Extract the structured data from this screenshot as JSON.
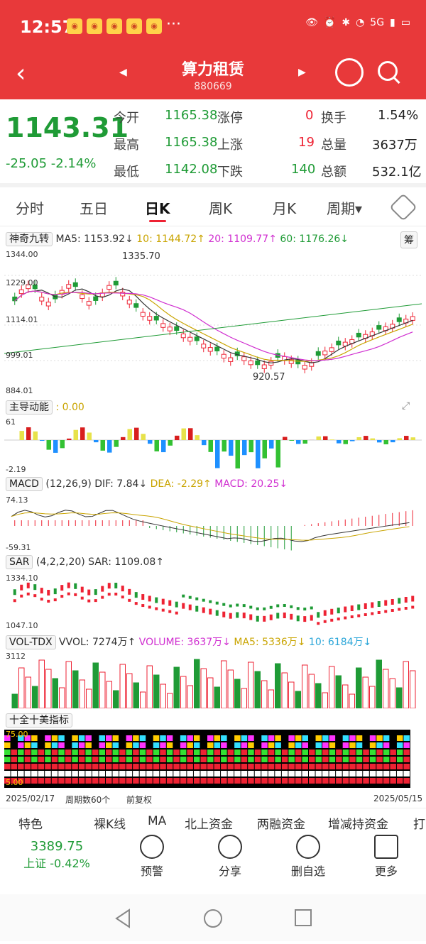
{
  "status": {
    "time": "12:57",
    "dots": "···",
    "network": "5G"
  },
  "header": {
    "title": "算力租赁",
    "code": "880669"
  },
  "quote": {
    "price": "1143.31",
    "change": "-25.05",
    "change_pct": "-2.14%",
    "open_label": "今开",
    "open": "1165.38",
    "high_label": "最高",
    "high": "1165.38",
    "low_label": "最低",
    "low": "1142.08",
    "limitup_label": "涨停",
    "limitup": "0",
    "up_label": "上涨",
    "up": "19",
    "down_label": "下跌",
    "down": "140",
    "turnover_label": "换手",
    "turnover": "1.54%",
    "volume_label": "总量",
    "volume": "3637万",
    "amount_label": "总额",
    "amount": "532.1亿"
  },
  "tabs": [
    "分时",
    "五日",
    "日K",
    "周K",
    "月K",
    "周期"
  ],
  "main_ind": {
    "name": "神奇九转",
    "ma5": "MA5: 1153.92↓",
    "ma10": "10: 1144.72↑",
    "ma20": "20: 1109.77↑",
    "ma60": "60: 1176.26↓",
    "badge": "筹",
    "y_labels": [
      "1344.00",
      "1229.00",
      "1114.01",
      "999.01",
      "884.01"
    ],
    "hi_label": "1335.70",
    "lo_label": "920.57"
  },
  "zd": {
    "name": "主导动能",
    "value": ": 0.00",
    "top": "61",
    "bottom": "-2.19"
  },
  "macd": {
    "name": "MACD",
    "params": "(12,26,9)",
    "dif": "DIF: 7.84↓",
    "dea": "DEA: -2.29↑",
    "macd": "MACD: 20.25↓",
    "top": "74.13",
    "bottom": "-59.31"
  },
  "sar": {
    "name": "SAR",
    "params": "(4,2,2,20)",
    "value": "SAR: 1109.08↑",
    "top": "1334.10",
    "bottom": "1047.10"
  },
  "vol": {
    "name": "VOL-TDX",
    "vvol": "VVOL: 7274万↑",
    "volume": "VOLUME: 3637万↓",
    "ma5": "MA5: 5336万↓",
    "ma10": "10: 6184万↓",
    "top": "3112"
  },
  "tenind": {
    "name": "十全十美指标",
    "top": "75.00",
    "bottom": "5.00"
  },
  "footer_dates": {
    "start": "2025/02/17",
    "period": "周期数60个",
    "adj": "前复权",
    "end": "2025/05/15"
  },
  "toolbar": [
    "特色",
    "裸K线",
    "MA",
    "北上资金",
    "两融资金",
    "增减持资金",
    "打"
  ],
  "bottomnav": {
    "index_value": "3389.75",
    "index_label": "上证 -0.42%",
    "items": [
      "预警",
      "分享",
      "删自选",
      "更多"
    ]
  },
  "chart_data": {
    "type": "candlestick",
    "title": "算力租赁",
    "date_range": [
      "2025/02/17",
      "2025/05/15"
    ],
    "ylim": [
      884.01,
      1344.0
    ],
    "high": 1335.7,
    "low": 920.57,
    "last_close": 1143.31,
    "ma": {
      "MA5": 1153.92,
      "MA10": 1144.72,
      "MA20": 1109.77,
      "MA60": 1176.26
    }
  }
}
